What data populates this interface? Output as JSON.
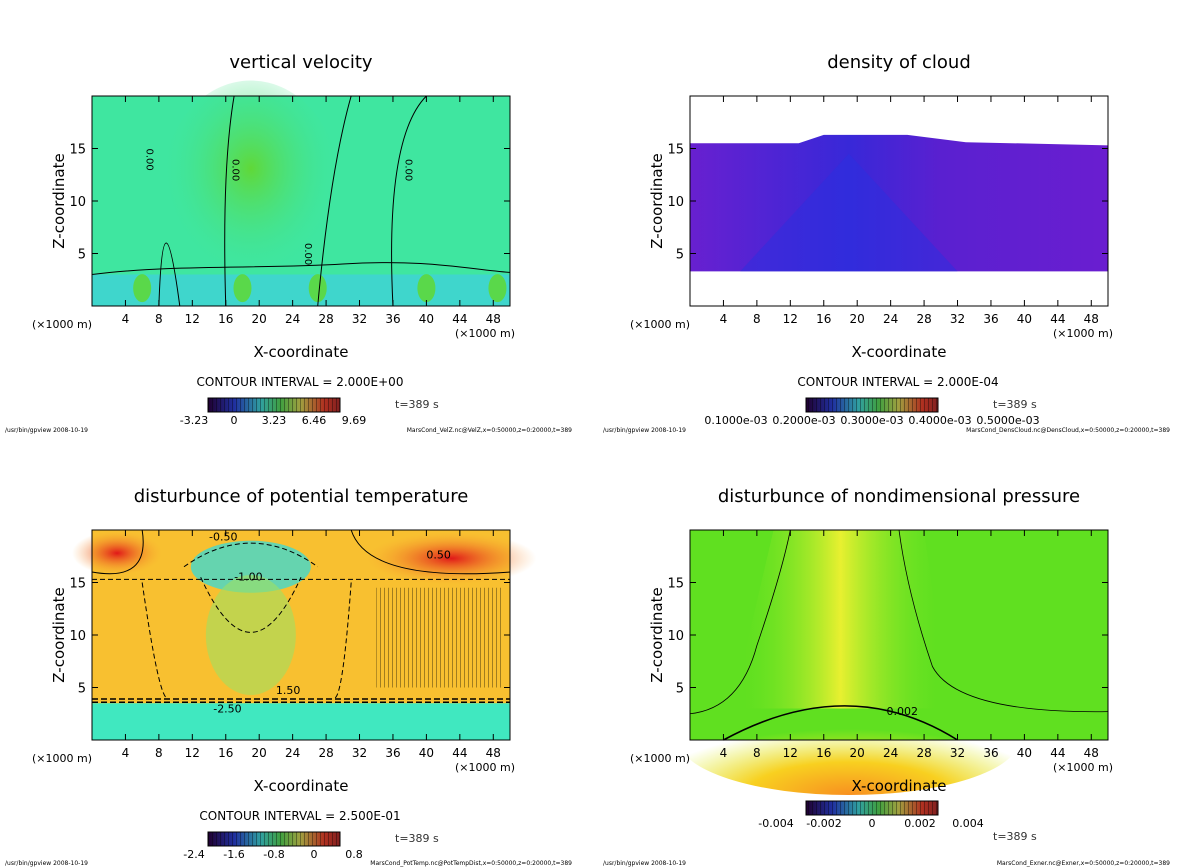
{
  "chart_data": [
    {
      "type": "heatmap",
      "title": "vertical velocity",
      "xlabel": "X-coordinate",
      "ylabel": "Z-coordinate",
      "x_unit": "(×1000 m)",
      "xlim": [
        0,
        50
      ],
      "ylim": [
        0,
        20
      ],
      "xticks": [
        4,
        8,
        12,
        16,
        20,
        24,
        28,
        32,
        36,
        40,
        44,
        48
      ],
      "yticks": [
        5,
        10,
        15
      ],
      "contour_interval": "CONTOUR INTERVAL = 2.000E+00",
      "contour_labels": [
        "0.00",
        "0.00",
        "0.00",
        "0.00"
      ],
      "colorbar_ticks": [
        "-3.23",
        "0",
        "3.23",
        "6.46",
        "9.69"
      ],
      "time": "t=389 s",
      "footer_left": "/usr/bin/gpview  2008-10-19",
      "footer_right": "MarsCond_VelZ.nc@VelZ,x=0:50000,z=0:20000,t=389",
      "colors": {
        "background": "#3fe6a0",
        "low": "#40c8f0",
        "high": "#5ad84a"
      }
    },
    {
      "type": "heatmap",
      "title": "density of cloud",
      "xlabel": "X-coordinate",
      "ylabel": "Z-coordinate",
      "x_unit": "(×1000 m)",
      "xlim": [
        0,
        50
      ],
      "ylim": [
        0,
        20
      ],
      "xticks": [
        4,
        8,
        12,
        16,
        20,
        24,
        28,
        32,
        36,
        40,
        44,
        48
      ],
      "yticks": [
        5,
        10,
        15
      ],
      "contour_interval": "CONTOUR INTERVAL = 2.000E-04",
      "colorbar_ticks": [
        "0.1000e-03",
        "0.2000e-03",
        "0.3000e-03",
        "0.4000e-03",
        "0.5000e-03"
      ],
      "time": "t=389 s",
      "footer_left": "/usr/bin/gpview  2008-10-19",
      "footer_right": "MarsCond_DensCloud.nc@DensCloud,x=0:50000,z=0:20000,t=389",
      "colors": {
        "cloud": "#6a1ed0",
        "core": "#3a2ad8"
      }
    },
    {
      "type": "heatmap",
      "title": "disturbunce of potential temperature",
      "xlabel": "X-coordinate",
      "ylabel": "Z-coordinate",
      "x_unit": "(×1000 m)",
      "xlim": [
        0,
        50
      ],
      "ylim": [
        0,
        20
      ],
      "xticks": [
        4,
        8,
        12,
        16,
        20,
        24,
        28,
        32,
        36,
        40,
        44,
        48
      ],
      "yticks": [
        5,
        10,
        15
      ],
      "contour_interval": "CONTOUR INTERVAL = 2.500E-01",
      "contour_labels": [
        "-0.50",
        "-1.00",
        "0.50",
        "-2.50",
        "1.50"
      ],
      "colorbar_ticks": [
        "-2.4",
        "-1.6",
        "-0.8",
        "0",
        "0.8"
      ],
      "time": "t=389 s",
      "footer_left": "/usr/bin/gpview  2008-10-19",
      "footer_right": "MarsCond_PotTemp.nc@PotTempDist,x=0:50000,z=0:20000,t=389",
      "colors": {
        "warm": "#f8c030",
        "hot": "#e83020",
        "cool": "#40e8c0"
      }
    },
    {
      "type": "heatmap",
      "title": "disturbunce of nondimensional pressure",
      "xlabel": "X-coordinate",
      "ylabel": "Z-coordinate",
      "x_unit": "(×1000 m)",
      "xlim": [
        0,
        50
      ],
      "ylim": [
        0,
        20
      ],
      "xticks": [
        4,
        8,
        12,
        16,
        20,
        24,
        28,
        32,
        36,
        40,
        44,
        48
      ],
      "yticks": [
        5,
        10,
        15
      ],
      "contour_labels": [
        "0.002"
      ],
      "colorbar_ticks": [
        "-0.004",
        "-0.002",
        "0",
        "0.002",
        "0.004"
      ],
      "time": "t=389 s",
      "footer_left": "/usr/bin/gpview  2008-10-19",
      "footer_right": "MarsCond_Exner.nc@Exner,x=0:50000,z=0:20000,t=389",
      "colors": {
        "background": "#60e020",
        "center": "#e8f020",
        "bottom": "#f8a020"
      }
    }
  ]
}
